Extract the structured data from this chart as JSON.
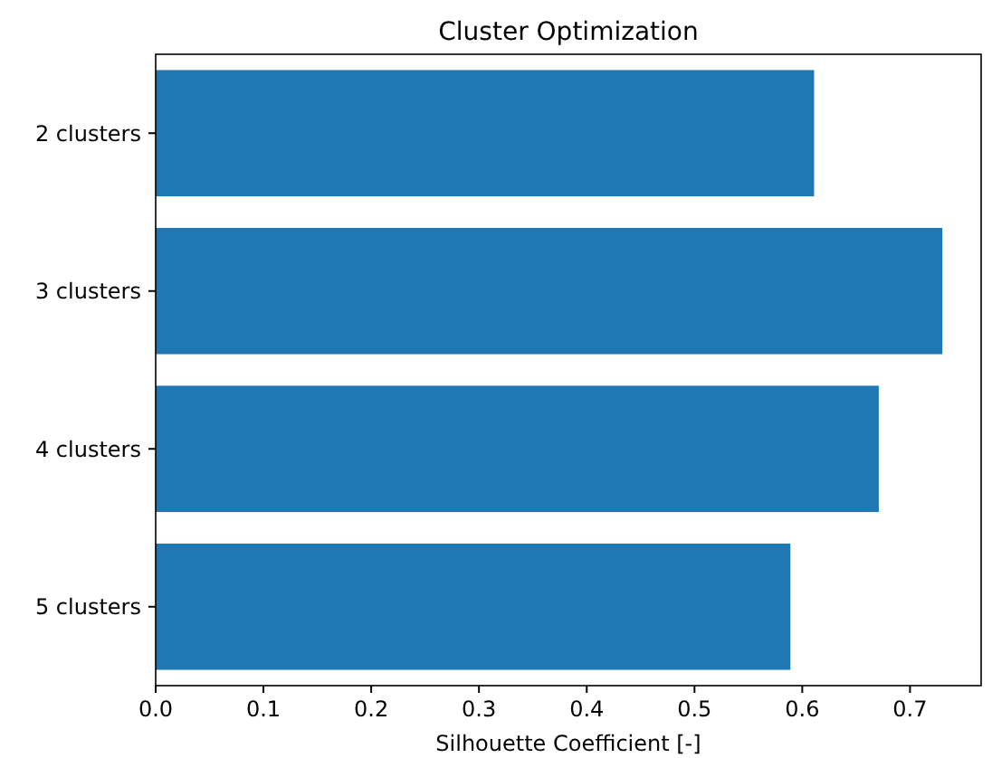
{
  "chart_data": {
    "type": "bar",
    "orientation": "horizontal",
    "title": "Cluster Optimization",
    "xlabel": "Silhouette Coefficient [-]",
    "categories": [
      "2 clusters",
      "3 clusters",
      "4 clusters",
      "5 clusters"
    ],
    "values": [
      0.611,
      0.73,
      0.671,
      0.589
    ],
    "color": "#1f77b4",
    "xlim": [
      0,
      0.766
    ],
    "xticks": [
      {
        "value": 0,
        "label": "0.0"
      },
      0.1,
      0.2,
      0.3,
      0.4,
      0.5,
      0.6,
      0.7
    ]
  }
}
